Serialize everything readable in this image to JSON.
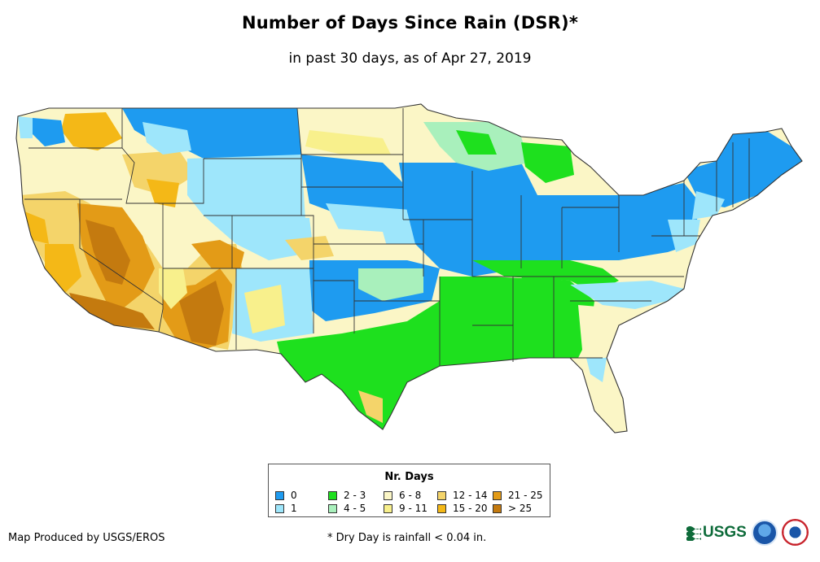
{
  "title": "Number of Days Since Rain (DSR)*",
  "subtitle": "in past 30 days, as of Apr 27, 2019",
  "legend": {
    "title": "Nr. Days",
    "items": [
      {
        "label": "0",
        "color": "#1e9bf0"
      },
      {
        "label": "1",
        "color": "#9ee6fb"
      },
      {
        "label": "2 - 3",
        "color": "#1ee01e"
      },
      {
        "label": "4 - 5",
        "color": "#a9f0bc"
      },
      {
        "label": "6 - 8",
        "color": "#fbf6c6"
      },
      {
        "label": "9 - 11",
        "color": "#f8f08c"
      },
      {
        "label": "12 - 14",
        "color": "#f4d46a"
      },
      {
        "label": "15 - 20",
        "color": "#f4b817"
      },
      {
        "label": "21 - 25",
        "color": "#e39b17"
      },
      {
        "label": "> 25",
        "color": "#c47a0f"
      }
    ]
  },
  "footer": {
    "credit": "Map Produced by USGS/EROS",
    "note": "* Dry Day is rainfall < 0.04 in."
  },
  "logos": {
    "usgs_text": "USGS",
    "usgs_icon": "usgs-wave-icon",
    "noaa_icon": "noaa-logo-icon",
    "nws_icon": "nws-logo-icon"
  },
  "colors": {
    "state_border": "#333333",
    "usgs_green": "#0e6b3a"
  }
}
